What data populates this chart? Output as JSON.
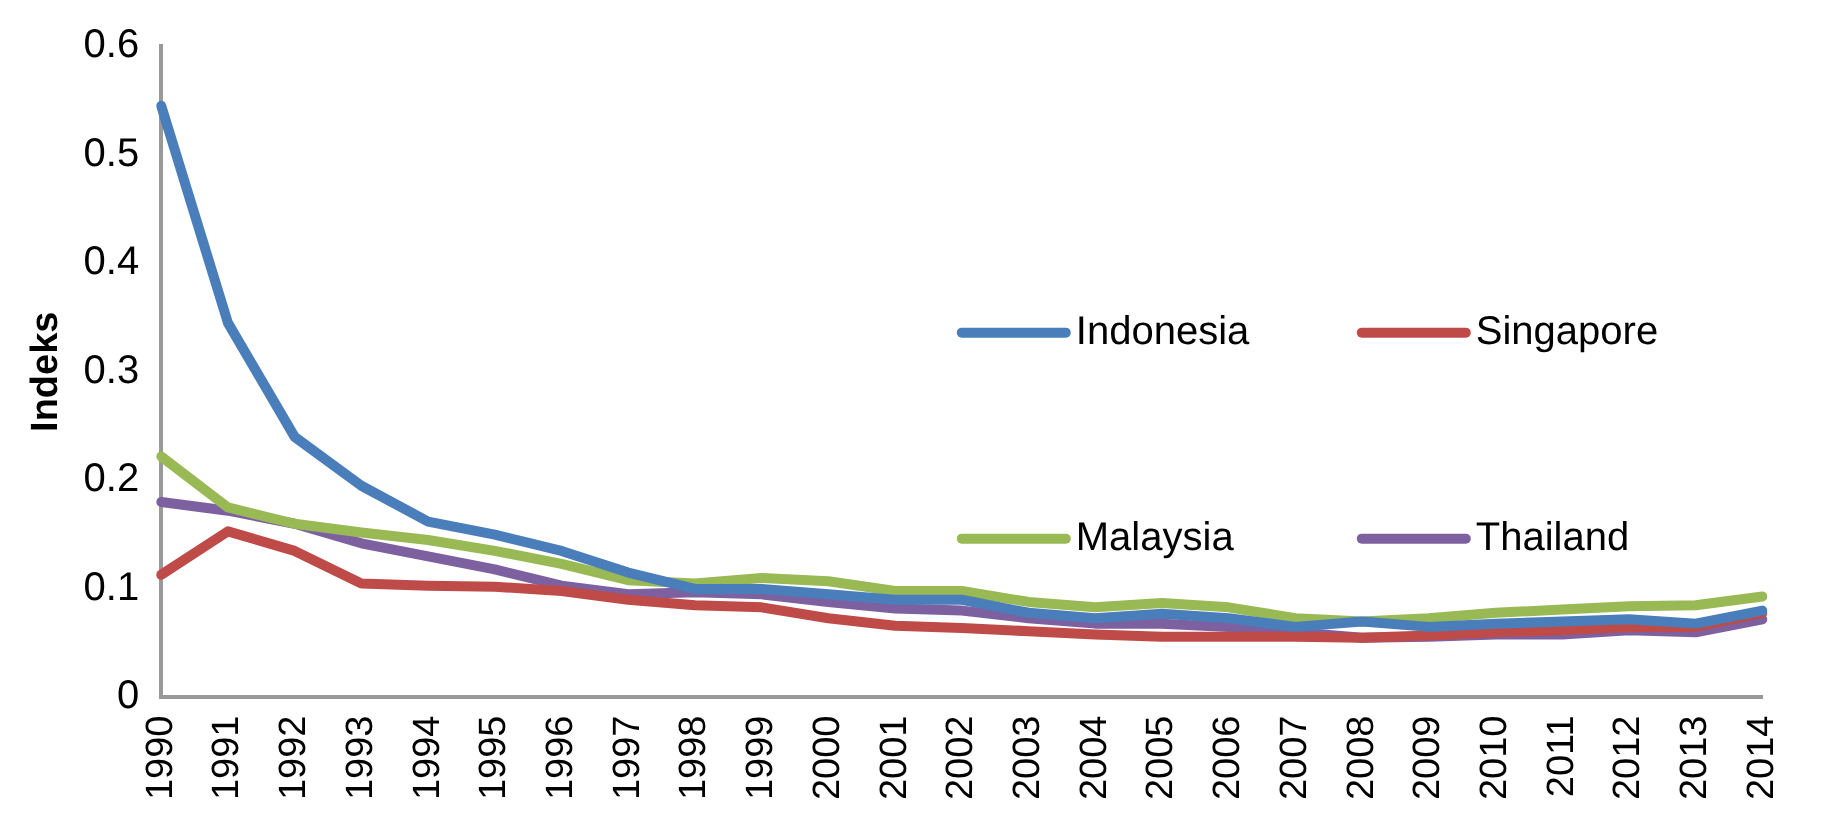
{
  "chart_data": {
    "type": "line",
    "ylabel": "Indeks",
    "categories": [
      "1990",
      "1991",
      "1992",
      "1993",
      "1994",
      "1995",
      "1996",
      "1997",
      "1998",
      "1999",
      "2000",
      "2001",
      "2002",
      "2003",
      "2004",
      "2005",
      "2006",
      "2007",
      "2008",
      "2009",
      "2010",
      "2011",
      "2012",
      "2013",
      "2014"
    ],
    "ylim": [
      0,
      0.6
    ],
    "yticks": [
      0,
      0.1,
      0.2,
      0.3,
      0.4,
      0.5,
      0.6
    ],
    "grid": false,
    "legend": "right",
    "marker": "none",
    "line_style": "solid",
    "series": [
      {
        "name": "Indonesia",
        "color": "#4a7ebb",
        "values": [
          0.545,
          0.345,
          0.24,
          0.195,
          0.162,
          0.15,
          0.135,
          0.115,
          0.1,
          0.1,
          0.095,
          0.09,
          0.09,
          0.078,
          0.073,
          0.077,
          0.073,
          0.065,
          0.07,
          0.065,
          0.068,
          0.07,
          0.072,
          0.068,
          0.08
        ]
      },
      {
        "name": "Singapore",
        "color": "#be4b48",
        "values": [
          0.113,
          0.153,
          0.135,
          0.105,
          0.103,
          0.102,
          0.098,
          0.09,
          0.085,
          0.083,
          0.073,
          0.066,
          0.064,
          0.061,
          0.058,
          0.056,
          0.056,
          0.056,
          0.055,
          0.057,
          0.06,
          0.062,
          0.065,
          0.065,
          0.078
        ]
      },
      {
        "name": "Malaysia",
        "color": "#98b954",
        "values": [
          0.222,
          0.175,
          0.16,
          0.152,
          0.145,
          0.135,
          0.123,
          0.108,
          0.105,
          0.11,
          0.107,
          0.098,
          0.098,
          0.088,
          0.083,
          0.087,
          0.083,
          0.073,
          0.07,
          0.073,
          0.078,
          0.081,
          0.084,
          0.085,
          0.093
        ]
      },
      {
        "name": "Thailand",
        "color": "#7d60a0",
        "values": [
          0.18,
          0.172,
          0.16,
          0.142,
          0.13,
          0.118,
          0.103,
          0.095,
          0.097,
          0.095,
          0.088,
          0.082,
          0.08,
          0.073,
          0.068,
          0.068,
          0.065,
          0.06,
          0.055,
          0.056,
          0.058,
          0.058,
          0.062,
          0.06,
          0.072
        ]
      }
    ]
  }
}
